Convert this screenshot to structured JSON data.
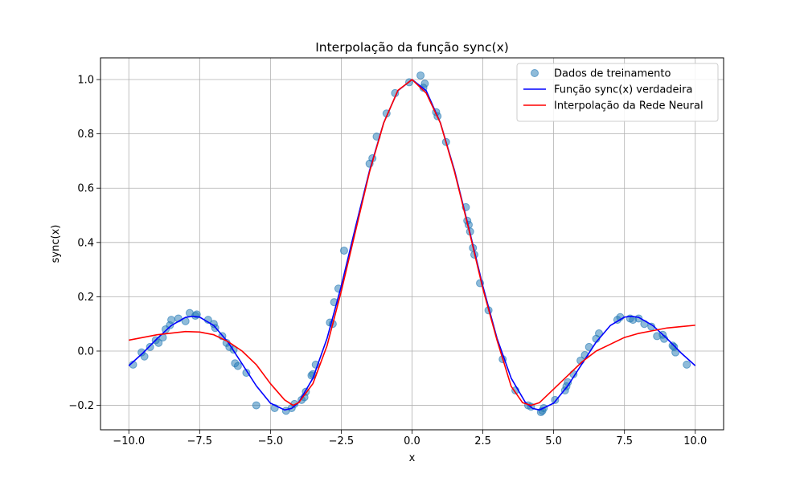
{
  "chart_data": {
    "type": "line",
    "title": "Interpolação da função sync(x)",
    "xlabel": "x",
    "ylabel": "sync(x)",
    "xlim": [
      -11.0,
      11.0
    ],
    "ylim": [
      -0.29,
      1.08
    ],
    "xticks": [
      -10.0,
      -7.5,
      -5.0,
      -2.5,
      0.0,
      2.5,
      5.0,
      7.5,
      10.0
    ],
    "xtick_labels": [
      "−10.0",
      "−7.5",
      "−5.0",
      "−2.5",
      "0.0",
      "2.5",
      "5.0",
      "7.5",
      "10.0"
    ],
    "yticks": [
      -0.2,
      0.0,
      0.2,
      0.4,
      0.6,
      0.8,
      1.0
    ],
    "ytick_labels": [
      "−0.2",
      "0.0",
      "0.2",
      "0.4",
      "0.6",
      "0.8",
      "1.0"
    ],
    "grid": true,
    "legend_position": "top-right",
    "series": [
      {
        "name": "Dados de treinamento",
        "kind": "scatter",
        "color": "#1f77b4",
        "x": [
          -9.85,
          -9.55,
          -9.45,
          -9.25,
          -9.05,
          -8.95,
          -8.8,
          -8.7,
          -8.55,
          -8.5,
          -8.25,
          -8.0,
          -7.85,
          -7.65,
          -7.6,
          -7.2,
          -7.0,
          -6.95,
          -6.7,
          -6.55,
          -6.45,
          -6.3,
          -6.25,
          -6.15,
          -5.85,
          -5.5,
          -4.85,
          -4.45,
          -4.25,
          -4.15,
          -3.9,
          -3.8,
          -3.75,
          -3.55,
          -3.5,
          -3.4,
          -2.9,
          -2.8,
          -2.75,
          -2.6,
          -2.4,
          -1.5,
          -1.4,
          -1.25,
          -0.9,
          -0.6,
          -0.1,
          0.3,
          0.4,
          0.45,
          0.85,
          0.9,
          1.2,
          1.9,
          1.95,
          2.0,
          2.05,
          2.15,
          2.2,
          2.4,
          2.7,
          3.2,
          3.65,
          4.1,
          4.2,
          4.55,
          4.6,
          4.65,
          5.05,
          5.4,
          5.45,
          5.5,
          5.7,
          5.95,
          6.1,
          6.25,
          6.5,
          6.6,
          7.25,
          7.35,
          7.7,
          7.8,
          8.0,
          8.2,
          8.45,
          8.65,
          8.85,
          8.9,
          9.2,
          9.25,
          9.3,
          9.7
        ],
        "y": [
          -0.05,
          -0.005,
          -0.02,
          0.015,
          0.04,
          0.03,
          0.05,
          0.08,
          0.095,
          0.115,
          0.12,
          0.11,
          0.14,
          0.13,
          0.135,
          0.115,
          0.1,
          0.085,
          0.055,
          0.03,
          0.015,
          0.005,
          -0.045,
          -0.055,
          -0.08,
          -0.2,
          -0.21,
          -0.22,
          -0.21,
          -0.195,
          -0.18,
          -0.17,
          -0.15,
          -0.09,
          -0.085,
          -0.05,
          0.105,
          0.1,
          0.18,
          0.23,
          0.37,
          0.69,
          0.71,
          0.79,
          0.875,
          0.95,
          0.99,
          1.015,
          0.97,
          0.985,
          0.88,
          0.865,
          0.77,
          0.53,
          0.48,
          0.465,
          0.44,
          0.38,
          0.355,
          0.25,
          0.15,
          -0.03,
          -0.145,
          -0.2,
          -0.205,
          -0.225,
          -0.22,
          -0.21,
          -0.18,
          -0.145,
          -0.13,
          -0.115,
          -0.085,
          -0.035,
          -0.015,
          0.015,
          0.045,
          0.065,
          0.115,
          0.125,
          0.12,
          0.115,
          0.12,
          0.1,
          0.09,
          0.055,
          0.06,
          0.045,
          0.02,
          0.015,
          -0.005,
          -0.05
        ]
      },
      {
        "name": "Função sync(x) verdadeira",
        "kind": "line",
        "color": "#0000ff",
        "x": [
          -10.0,
          -9.5,
          -9.0,
          -8.5,
          -8.0,
          -7.75,
          -7.5,
          -7.0,
          -6.5,
          -6.0,
          -5.5,
          -5.0,
          -4.5,
          -4.25,
          -4.0,
          -3.5,
          -3.0,
          -2.5,
          -2.0,
          -1.5,
          -1.0,
          -0.5,
          0.0,
          0.5,
          1.0,
          1.5,
          2.0,
          2.5,
          3.0,
          3.5,
          4.0,
          4.25,
          4.5,
          5.0,
          5.5,
          6.0,
          6.5,
          7.0,
          7.5,
          7.75,
          8.0,
          8.5,
          9.0,
          9.5,
          10.0
        ],
        "y": [
          -0.054,
          -0.007,
          0.046,
          0.094,
          0.124,
          0.128,
          0.125,
          0.094,
          0.033,
          -0.047,
          -0.128,
          -0.192,
          -0.217,
          -0.211,
          -0.189,
          -0.1,
          0.047,
          0.239,
          0.455,
          0.665,
          0.841,
          0.959,
          1.0,
          0.959,
          0.841,
          0.665,
          0.455,
          0.239,
          0.047,
          -0.1,
          -0.189,
          -0.211,
          -0.217,
          -0.192,
          -0.128,
          -0.047,
          0.033,
          0.094,
          0.125,
          0.128,
          0.124,
          0.094,
          0.046,
          -0.007,
          -0.054
        ]
      },
      {
        "name": "Interpolação da Rede Neural",
        "kind": "line",
        "color": "#ff0000",
        "x": [
          -10.0,
          -9.0,
          -8.0,
          -7.5,
          -7.0,
          -6.5,
          -6.0,
          -5.5,
          -5.0,
          -4.5,
          -4.2,
          -4.0,
          -3.5,
          -3.0,
          -2.5,
          -2.0,
          -1.5,
          -1.0,
          -0.5,
          0.0,
          0.5,
          1.0,
          1.5,
          2.0,
          2.5,
          3.0,
          3.5,
          3.9,
          4.2,
          4.5,
          5.0,
          5.5,
          6.0,
          6.5,
          7.0,
          7.5,
          8.0,
          8.5,
          9.0,
          9.5,
          10.0
        ],
        "y": [
          0.04,
          0.06,
          0.072,
          0.07,
          0.06,
          0.035,
          0.0,
          -0.05,
          -0.12,
          -0.18,
          -0.2,
          -0.19,
          -0.12,
          0.02,
          0.22,
          0.44,
          0.66,
          0.84,
          0.96,
          1.0,
          0.95,
          0.84,
          0.66,
          0.45,
          0.23,
          0.04,
          -0.13,
          -0.19,
          -0.2,
          -0.19,
          -0.14,
          -0.09,
          -0.04,
          0.0,
          0.025,
          0.05,
          0.065,
          0.075,
          0.085,
          0.09,
          0.095
        ]
      }
    ]
  }
}
